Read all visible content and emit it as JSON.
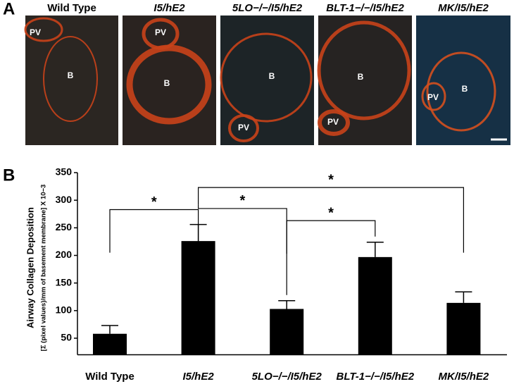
{
  "panels": [
    "A",
    "B"
  ],
  "images": [
    {
      "title": "Wild Type",
      "labels": [
        "PV",
        "B"
      ]
    },
    {
      "title": "I5/hE2",
      "labels": [
        "PV",
        "B"
      ]
    },
    {
      "title": "5LO−/−/I5/hE2",
      "labels": [
        "B",
        "PV"
      ]
    },
    {
      "title": "BLT-1−/−/I5/hE2",
      "labels": [
        "B",
        "PV"
      ]
    },
    {
      "title": "MK/I5/hE2",
      "labels": [
        "PV",
        "B"
      ]
    }
  ],
  "chart_data": {
    "type": "bar",
    "y_label": "Airway Collagen Deposition",
    "y_sublabel": "[Σ (pixel values)/mm of basement membrane] X 10−3",
    "categories": [
      "Wild Type",
      "I5/hE2",
      "5LO−/−/I5/hE2",
      "BLT-1−/−/I5/hE2",
      "MK/I5/hE2"
    ],
    "values": [
      58,
      226,
      103,
      197,
      114
    ],
    "errors": [
      15,
      30,
      15,
      27,
      20
    ],
    "color": "#000000",
    "ylim": [
      20,
      350
    ],
    "yticks": [
      50,
      100,
      150,
      200,
      250,
      300,
      350
    ],
    "significance": [
      {
        "pair": [
          0,
          1
        ],
        "label": "*"
      },
      {
        "pair": [
          1,
          2
        ],
        "label": "*"
      },
      {
        "pair": [
          2,
          3
        ],
        "label": "*"
      },
      {
        "pair": [
          1,
          4
        ],
        "label": "*"
      }
    ]
  }
}
